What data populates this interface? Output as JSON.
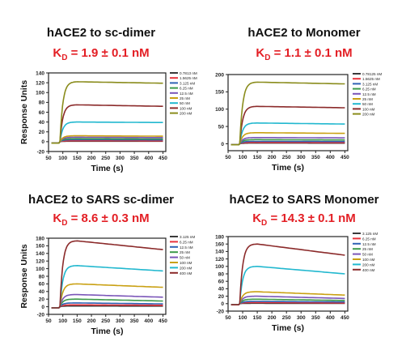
{
  "panels": [
    {
      "title": "hACE2 to sc-dimer",
      "kd_value": "= 1.9 ± 0.1 nM"
    },
    {
      "title": "hACE2 to Monomer",
      "kd_value": "= 1.1 ± 0.1 nM"
    },
    {
      "title": "hACE2 to SARS sc-dimer",
      "kd_value": "= 8.6 ± 0.3 nM"
    },
    {
      "title": "hACE2 to SARS Monomer",
      "kd_value": "= 14.3 ± 0.1 nM"
    }
  ],
  "kd_symbol": "K",
  "kd_subscript": "D",
  "chart_data": [
    {
      "type": "line",
      "title": "hACE2 to sc-dimer",
      "xlabel": "Time (s)",
      "ylabel": "Response Units",
      "xlim": [
        50,
        460
      ],
      "ylim": [
        -20,
        140
      ],
      "xticks": [
        50,
        100,
        150,
        200,
        250,
        300,
        350,
        400,
        450
      ],
      "yticks": [
        -20,
        0,
        20,
        40,
        60,
        80,
        100,
        120,
        140
      ],
      "legend_position": "top-right",
      "assoc_start": 90,
      "dissoc_start": 150,
      "series": [
        {
          "name": "0.7813 nM",
          "color": "#3a3a3a",
          "peak": 1,
          "end": 0.9
        },
        {
          "name": "1.5625 nM",
          "color": "#e8333c",
          "peak": 2,
          "end": 1.8
        },
        {
          "name": "3.125 nM",
          "color": "#2f62b4",
          "peak": 4,
          "end": 3.6
        },
        {
          "name": "6.25 nM",
          "color": "#3c9a4a",
          "peak": 6,
          "end": 5.5
        },
        {
          "name": "12.5 nM",
          "color": "#7a55b8",
          "peak": 9,
          "end": 8.3
        },
        {
          "name": "25 nM",
          "color": "#c9a012",
          "peak": 12,
          "end": 11.2
        },
        {
          "name": "50 nM",
          "color": "#22b8cf",
          "peak": 40,
          "end": 39
        },
        {
          "name": "100 nM",
          "color": "#8b2a2a",
          "peak": 75,
          "end": 72
        },
        {
          "name": "200 nM",
          "color": "#8a8c1c",
          "peak": 122,
          "end": 119
        }
      ]
    },
    {
      "type": "line",
      "title": "hACE2 to Monomer",
      "xlabel": "Time (s)",
      "ylabel": "",
      "xlim": [
        50,
        460
      ],
      "ylim": [
        -20,
        200
      ],
      "xticks": [
        50,
        100,
        150,
        200,
        250,
        300,
        350,
        400,
        450
      ],
      "yticks": [
        0,
        50,
        100,
        150,
        200
      ],
      "legend_position": "top-right",
      "assoc_start": 90,
      "dissoc_start": 150,
      "series": [
        {
          "name": "0.78125 nM",
          "color": "#3a3a3a",
          "peak": 2,
          "end": 1.8
        },
        {
          "name": "1.5625 nM",
          "color": "#e8333c",
          "peak": 4,
          "end": 3.6
        },
        {
          "name": "3.125 nM",
          "color": "#2f62b4",
          "peak": 7,
          "end": 6.4
        },
        {
          "name": "6.25 nM",
          "color": "#3c9a4a",
          "peak": 12,
          "end": 11
        },
        {
          "name": "12.5 nM",
          "color": "#7a55b8",
          "peak": 18,
          "end": 17
        },
        {
          "name": "25 nM",
          "color": "#c9a012",
          "peak": 32,
          "end": 30
        },
        {
          "name": "50 nM",
          "color": "#22b8cf",
          "peak": 60,
          "end": 57
        },
        {
          "name": "100 nM",
          "color": "#8b2a2a",
          "peak": 108,
          "end": 104
        },
        {
          "name": "200 nM",
          "color": "#8a8c1c",
          "peak": 178,
          "end": 173
        }
      ]
    },
    {
      "type": "line",
      "title": "hACE2 to SARS sc-dimer",
      "xlabel": "Time (s)",
      "ylabel": "Response Units",
      "xlim": [
        50,
        460
      ],
      "ylim": [
        -20,
        180
      ],
      "xticks": [
        50,
        100,
        150,
        200,
        250,
        300,
        350,
        400,
        450
      ],
      "yticks": [
        -20,
        0,
        20,
        40,
        60,
        80,
        100,
        120,
        140,
        160,
        180
      ],
      "legend_position": "top-right",
      "assoc_start": 90,
      "dissoc_start": 150,
      "series": [
        {
          "name": "3.125 nM",
          "color": "#3a3a3a",
          "peak": 2,
          "end": 1.6
        },
        {
          "name": "6.25 nM",
          "color": "#e8333c",
          "peak": 5,
          "end": 3.8
        },
        {
          "name": "12.5 nM",
          "color": "#2f62b4",
          "peak": 10,
          "end": 7.5
        },
        {
          "name": "25 nM",
          "color": "#3c9a4a",
          "peak": 20,
          "end": 15
        },
        {
          "name": "50 nM",
          "color": "#7a55b8",
          "peak": 32,
          "end": 25
        },
        {
          "name": "100 nM",
          "color": "#c9a012",
          "peak": 60,
          "end": 51
        },
        {
          "name": "200 nM",
          "color": "#22b8cf",
          "peak": 108,
          "end": 94
        },
        {
          "name": "400 nM",
          "color": "#8b2a2a",
          "peak": 173,
          "end": 150
        }
      ]
    },
    {
      "type": "line",
      "title": "hACE2 to SARS Monomer",
      "xlabel": "Time (s)",
      "ylabel": "",
      "xlim": [
        50,
        460
      ],
      "ylim": [
        -20,
        180
      ],
      "xticks": [
        50,
        100,
        150,
        200,
        250,
        300,
        350,
        400,
        450
      ],
      "yticks": [
        -20,
        0,
        20,
        40,
        60,
        80,
        100,
        120,
        140,
        160,
        180
      ],
      "legend_position": "top-right",
      "assoc_start": 90,
      "dissoc_start": 150,
      "series": [
        {
          "name": "3.125 nM",
          "color": "#3a3a3a",
          "peak": 1,
          "end": 0.7
        },
        {
          "name": "6.25 nM",
          "color": "#e8333c",
          "peak": 3,
          "end": 2
        },
        {
          "name": "12.5 nM",
          "color": "#2f62b4",
          "peak": 6,
          "end": 4.5
        },
        {
          "name": "25 nM",
          "color": "#3c9a4a",
          "peak": 12,
          "end": 8.5
        },
        {
          "name": "50 nM",
          "color": "#7a55b8",
          "peak": 20,
          "end": 14
        },
        {
          "name": "100 nM",
          "color": "#c9a012",
          "peak": 32,
          "end": 23
        },
        {
          "name": "200 nM",
          "color": "#22b8cf",
          "peak": 100,
          "end": 80
        },
        {
          "name": "400 nM",
          "color": "#8b2a2a",
          "peak": 160,
          "end": 130
        }
      ]
    }
  ]
}
